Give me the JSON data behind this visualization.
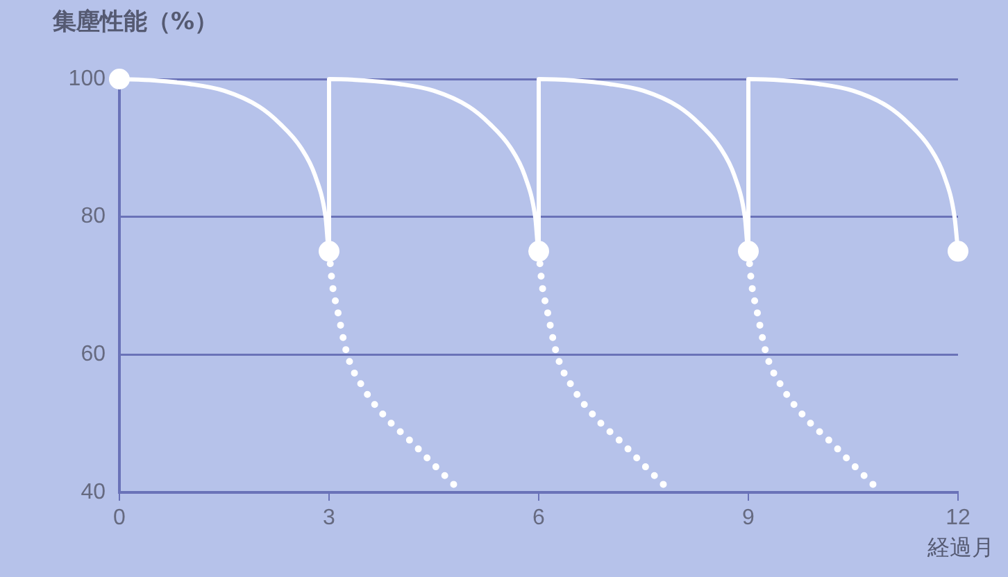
{
  "chart_data": {
    "type": "line",
    "ylabel": "集塵性能（%）",
    "xlabel": "経過月",
    "xlim": [
      0,
      12
    ],
    "xticks": [
      0,
      3,
      6,
      9,
      12
    ],
    "ylim": [
      40,
      100
    ],
    "yticks": [
      40,
      60,
      80,
      100
    ],
    "grid": "y",
    "legend": false,
    "series": [
      {
        "type": "line",
        "color": "#ffffff",
        "marker": "none",
        "line_style": "solid",
        "x": [
          0,
          0.5,
          1,
          1.5,
          2,
          2.3,
          2.6,
          2.8,
          2.95,
          3,
          3,
          3.5,
          4,
          4.5,
          5,
          5.3,
          5.6,
          5.8,
          5.95,
          6,
          6,
          6.5,
          7,
          7.5,
          8,
          8.3,
          8.6,
          8.8,
          8.95,
          9,
          9,
          9.5,
          10,
          10.5,
          11,
          11.3,
          11.6,
          11.8,
          11.95,
          12
        ],
        "values": [
          100,
          99.8,
          99.3,
          98.3,
          96,
          93.5,
          90,
          86,
          80,
          75,
          100,
          99.8,
          99.3,
          98.3,
          96,
          93.5,
          90,
          86,
          80,
          75,
          100,
          99.8,
          99.3,
          98.3,
          96,
          93.5,
          90,
          86,
          80,
          75,
          100,
          99.8,
          99.3,
          98.3,
          96,
          93.5,
          90,
          86,
          80,
          75
        ]
      },
      {
        "type": "line",
        "color": "#ffffff",
        "marker": "none",
        "line_style": "dotted",
        "x": [
          3,
          3.05,
          3.12,
          3.26,
          3.5,
          3.8,
          4.18,
          4.5,
          4.9
        ],
        "values": [
          75,
          70,
          66.5,
          60,
          55,
          51,
          47.3,
          44,
          40
        ]
      },
      {
        "type": "line",
        "color": "#ffffff",
        "marker": "none",
        "line_style": "dotted",
        "x": [
          6,
          6.05,
          6.12,
          6.26,
          6.5,
          6.8,
          7.18,
          7.5,
          7.9
        ],
        "values": [
          75,
          70,
          66.5,
          60,
          55,
          51,
          47.3,
          44,
          40
        ]
      },
      {
        "type": "line",
        "color": "#ffffff",
        "marker": "none",
        "line_style": "dotted",
        "x": [
          9,
          9.05,
          9.12,
          9.26,
          9.5,
          9.8,
          10.18,
          10.5,
          10.9
        ],
        "values": [
          75,
          70,
          66.5,
          60,
          55,
          51,
          47.3,
          44,
          40
        ]
      },
      {
        "type": "scatter",
        "color": "#ffffff",
        "marker": "circle",
        "x": [
          0,
          3,
          6,
          9,
          12
        ],
        "values": [
          100,
          75,
          75,
          75,
          75
        ]
      }
    ]
  }
}
